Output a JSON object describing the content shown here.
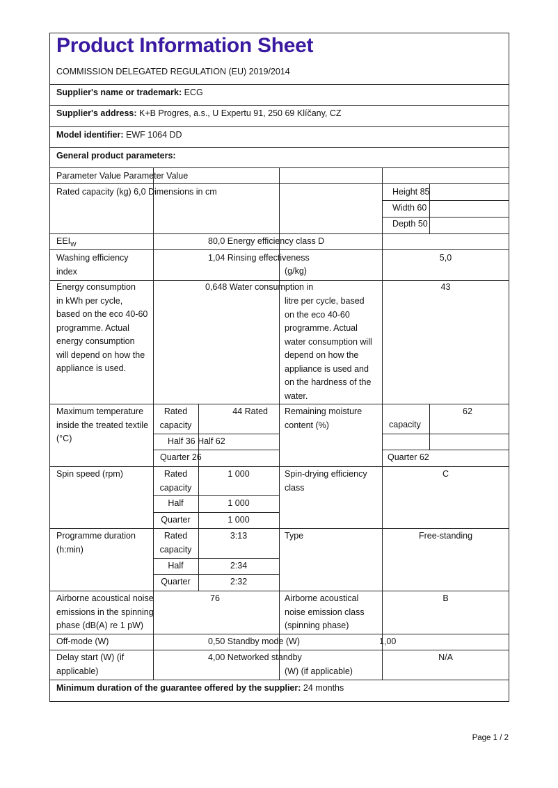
{
  "title": "Product Information Sheet",
  "regulation": "COMMISSION DELEGATED REGULATION (EU) 2019/2014",
  "supplier_name": {
    "label": "Supplier's name or trademark:",
    "value": " ECG"
  },
  "supplier_address": {
    "label": "Supplier's address:",
    "value": " K+B Progres, a.s., U Expertu 91, 250 69 Klíčany, CZ"
  },
  "model": {
    "label": "Model identifier:",
    "value": " EWF 1064 DD"
  },
  "general_heading": "General product parameters:",
  "table": {
    "header": "Parameter Value Parameter Value",
    "rated_capacity": "Rated capacity (kg) 6,0 Dimensions in cm",
    "height": "Height 85",
    "width": "Width 60",
    "depth": "Depth 50",
    "eei_label": "EEI",
    "eei_sub": "W",
    "eei_value": "80,0 Energy efficiency class D",
    "washing_label": "Washing efficiency\nindex",
    "washing_value": "1,04 Rinsing effectiveness",
    "rinsing_unit": "(g/kg)",
    "rinsing_value": "5,0",
    "energy_label": "Energy consumption\nin kWh per cycle,\nbased on the eco 40-60\nprogramme. Actual\nenergy consumption\nwill depend on how the\nappliance is used.",
    "energy_value": "0,648 Water consumption in",
    "water_label_cont": "litre per cycle, based\non the eco 40-60\nprogramme. Actual\nwater consumption will\ndepend on how the\nappliance is used and\non the hardness of the\nwater.",
    "water_value": "43",
    "maxtemp_label": "Maximum temperature\ninside the treated textile\n(°C)",
    "rated_capacity_short": "Rated\ncapacity",
    "maxtemp_rated": "44 Rated",
    "moisture_label": "Remaining moisture\ncontent (%)",
    "moisture_rated": "62",
    "moisture_capacity": "capacity",
    "half_row": "Half 36 Half 62",
    "maxtemp_quarter": "Quarter 26",
    "moisture_quarter": "Quarter 62",
    "spin_label": "Spin speed (rpm)",
    "spin_rated": "1 000",
    "spin_half": "1 000",
    "spin_quarter": "1 000",
    "half": "Half",
    "quarter": "Quarter",
    "spin_class_label": "Spin-drying efficiency\nclass",
    "spin_class": "C",
    "duration_label": "Programme duration\n(h:min)",
    "duration_rated": "3:13",
    "duration_half": "2:34",
    "duration_quarter": "2:32",
    "type_label": "Type",
    "type_value": "Free-standing",
    "noise_label": "Airborne acoustical noise\nemissions in the spinning\nphase (dB(A) re 1 pW)",
    "noise_value": "76",
    "noise_class_label": "Airborne acoustical\nnoise emission class\n(spinning phase)",
    "noise_class": "B",
    "offmode_label": "Off-mode (W)",
    "offmode_value": "0,50 Standby mode (W)",
    "standby_value": "1,00",
    "delay_label": "Delay start (W) (if\napplicable)",
    "delay_value": "4,00 Networked standby",
    "networked_unit": "(W) (if applicable)",
    "networked_value": "N/A"
  },
  "guarantee": {
    "label": "Minimum duration of the guarantee offered by the supplier:",
    "value": " 24 months"
  },
  "page_number": "Page 1 / 2",
  "colors": {
    "title": "#3a1aa0"
  }
}
